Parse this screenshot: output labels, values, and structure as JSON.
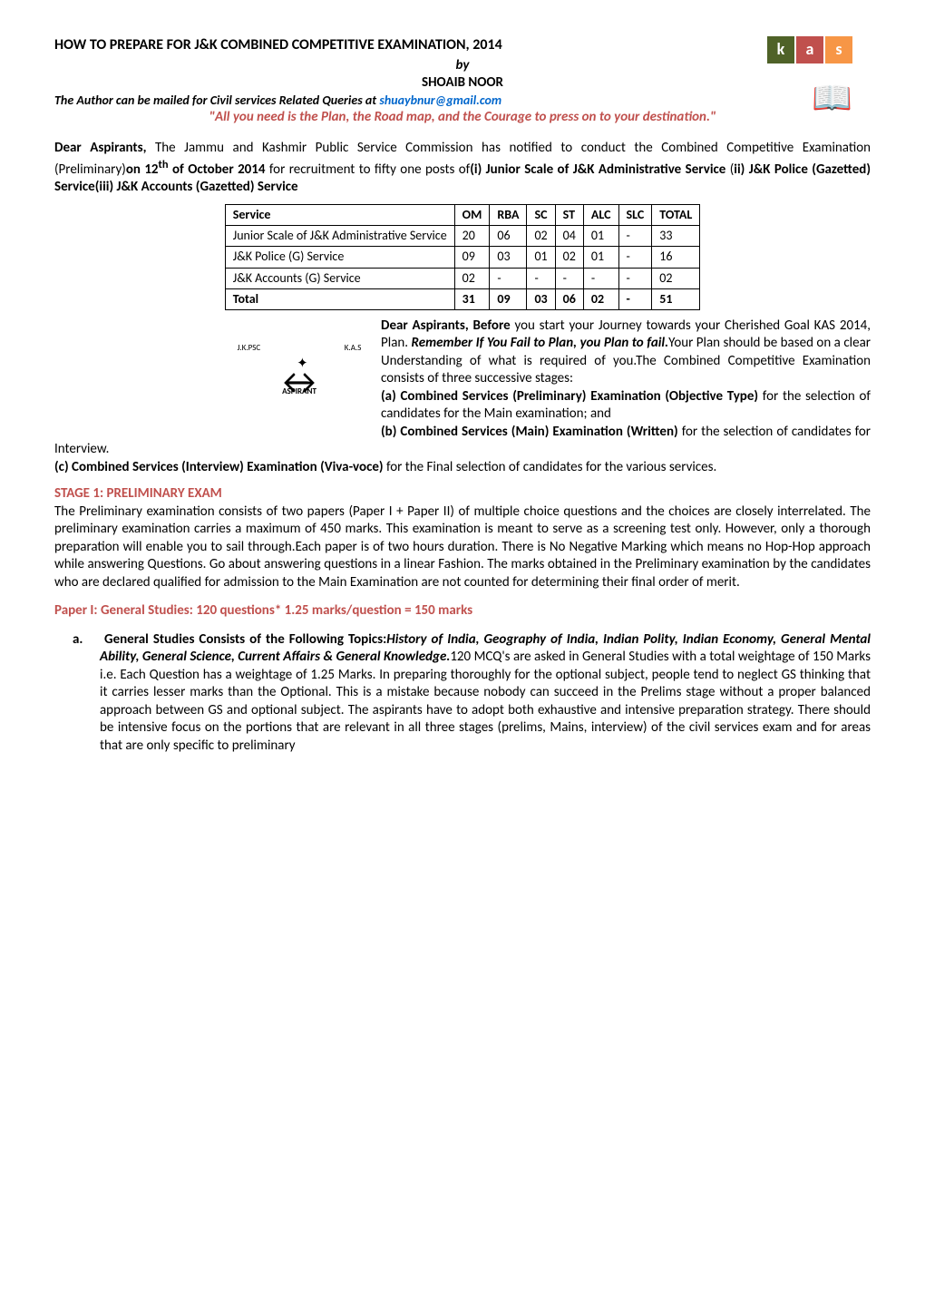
{
  "logo": {
    "letters": [
      "k",
      "a",
      "s"
    ],
    "colors": [
      "#4f6228",
      "#c0504d",
      "#f79646"
    ],
    "book_emoji": "📖"
  },
  "header": {
    "title": "HOW TO PREPARE FOR J&K COMBINED COMPETITIVE EXAMINATION, 2014",
    "by": "by",
    "author": "SHOAIB NOOR",
    "author_prefix": "The Author can be mailed for Civil services Related Queries at ",
    "email": "shuaybnur@gmail.com",
    "quote": "\"All you need is the Plan, the Road map, and the Courage to press on to your destination.\""
  },
  "intro": {
    "prefix": "Dear Aspirants,",
    "text": " The Jammu and Kashmir Public Service Commission has notified to conduct the Combined Competitive Examination (Preliminary)",
    "bold1": "on 12",
    "sup1": "th",
    "bold2": " of October 2014",
    "text2": " for recruitment to fifty one posts of",
    "bold3": "(i) Junior Scale of J&K Administrative Service",
    "text3": " (",
    "bold4": "ii) J&K Police (Gazetted) Service(iii) J&K Accounts (Gazetted) Service"
  },
  "table": {
    "headers": [
      "Service",
      "OM",
      "RBA",
      "SC",
      "ST",
      "ALC",
      "SLC",
      "TOTAL"
    ],
    "rows": [
      [
        "Junior Scale of J&K Administrative Service",
        "20",
        "06",
        "02",
        "04",
        "01",
        "-",
        "33"
      ],
      [
        "J&K Police (G) Service",
        "09",
        "03",
        "01",
        "02",
        "01",
        "-",
        "16"
      ],
      [
        "J&K Accounts (G) Service",
        "02",
        "-",
        "-",
        "-",
        "-",
        "-",
        "02"
      ],
      [
        "Total",
        "31",
        "09",
        "03",
        "06",
        "02",
        "-",
        "51"
      ]
    ]
  },
  "plan": {
    "prefix": "Dear Aspirants, Before",
    "text1": " you start your Journey towards your Cherished Goal KAS 2014, Plan. ",
    "italic1": "Remember If You Fail to Plan, you Plan to fail.",
    "text2": "Your Plan should be based on a clear Understanding of what is required of you.The Combined Competitive Examination consists of three successive stages:",
    "a_label": "(a) Combined Services (Preliminary) Examination (Objective Type)",
    "a_text": " for the selection of candidates for the Main examination; and",
    "b_label": "(b) Combined Services (Main) Examination (Written)",
    "b_text": " for the selection of candidates for Interview.",
    "c_label": "(c) Combined Services (Interview) Examination (Viva-voce)",
    "c_text": " for the Final selection of candidates for the various services."
  },
  "graphic": {
    "jkpsc": "J.K.PSC",
    "kas": "K.A.S",
    "aspirant": "ASPIRANT"
  },
  "stage1": {
    "heading": "STAGE 1: PRELIMINARY EXAM",
    "text": "The Preliminary examination consists of two papers (Paper I + Paper II) of multiple choice questions and the choices are closely interrelated. The preliminary examination carries a maximum of 450 marks. This examination is meant to serve as a screening test only. However, only a thorough preparation will enable you to sail through.Each paper is of two hours duration. There is No Negative Marking which means no Hop-Hop approach while answering Questions. Go about answering questions in a linear Fashion. The marks obtained in the Preliminary examination by the candidates who are declared qualified for admission to the Main Examination are not counted for determining their final order of merit."
  },
  "paper1": {
    "heading": "Paper I: General Studies: 120 questions* 1.25 marks/question = 150 marks",
    "marker": "a.",
    "topic_prefix": "General Studies Consists of the Following Topics:",
    "topics": "History of India, Geography of India, Indian Polity, Indian Economy, General Mental Ability, General Science, Current Affairs & General Knowledge.",
    "body": "120 MCQ's are asked in General Studies with a total weightage of 150 Marks i.e. Each Question has a weightage of 1.25 Marks. In preparing thoroughly for the optional subject, people tend to neglect GS thinking that it carries lesser marks than the Optional. This is a mistake because nobody can succeed in the Prelims stage without a proper balanced approach between GS and optional subject. The aspirants have to adopt both exhaustive and intensive preparation strategy. There should be intensive focus on the portions that are relevant in all three stages (prelims, Mains, interview) of the civil services exam and for areas that are only specific to preliminary"
  }
}
